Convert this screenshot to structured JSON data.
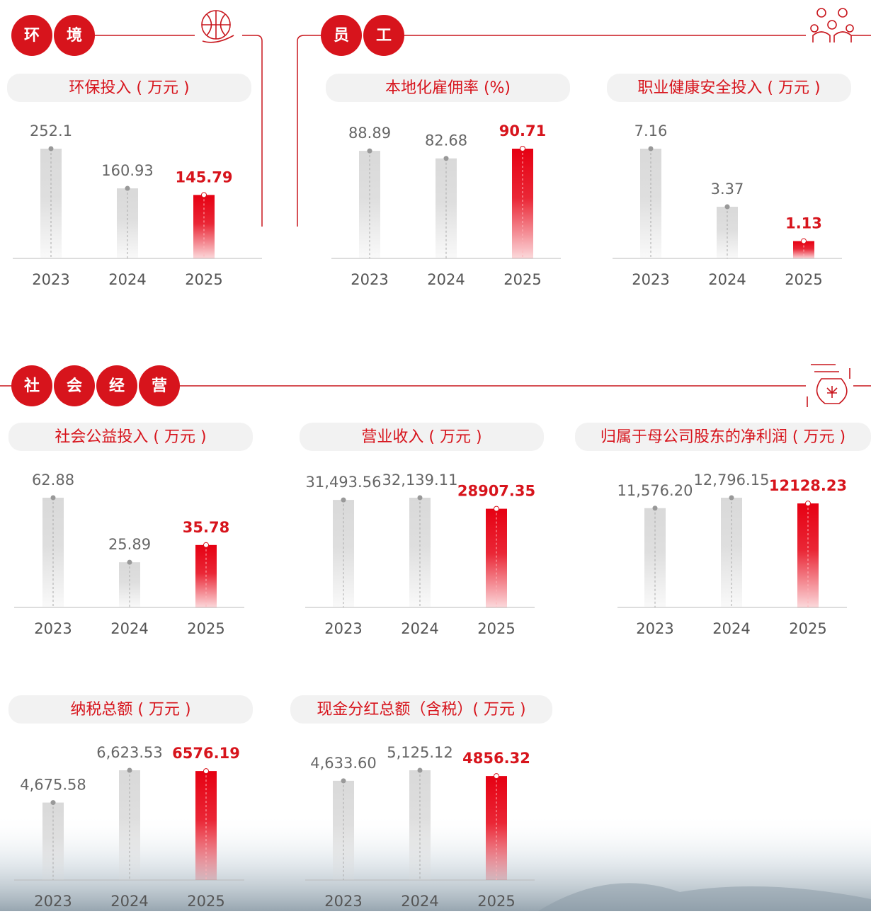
{
  "sections": [
    {
      "chars": [
        "环",
        "境"
      ]
    },
    {
      "chars": [
        "员",
        "工"
      ]
    },
    {
      "chars": [
        "社",
        "会",
        "经",
        "营"
      ]
    }
  ],
  "chart_data": [
    {
      "type": "bar",
      "title": "环保投入 ( 万元 )",
      "categories": [
        "2023",
        "2024",
        "2025"
      ],
      "values": [
        252.1,
        160.93,
        145.79
      ],
      "colors": [
        "#d9d9d9",
        "#d9d9d9",
        "#e60012"
      ]
    },
    {
      "type": "bar",
      "title": "本地化雇佣率 (%)",
      "categories": [
        "2023",
        "2024",
        "2025"
      ],
      "values": [
        88.89,
        82.68,
        90.71
      ],
      "colors": [
        "#d9d9d9",
        "#d9d9d9",
        "#e60012"
      ]
    },
    {
      "type": "bar",
      "title": "职业健康安全投入 ( 万元 )",
      "categories": [
        "2023",
        "2024",
        "2025"
      ],
      "values": [
        7.16,
        3.37,
        1.13
      ],
      "colors": [
        "#d9d9d9",
        "#d9d9d9",
        "#e60012"
      ]
    },
    {
      "type": "bar",
      "title": "社会公益投入 ( 万元 )",
      "categories": [
        "2023",
        "2024",
        "2025"
      ],
      "values": [
        62.88,
        25.89,
        35.78
      ],
      "colors": [
        "#d9d9d9",
        "#d9d9d9",
        "#e60012"
      ]
    },
    {
      "type": "bar",
      "title": "营业收入 ( 万元 )",
      "categories": [
        "2023",
        "2024",
        "2025"
      ],
      "values": [
        31493.56,
        32139.11,
        28907.35
      ],
      "value_labels": [
        "31,493.56",
        "32,139.11",
        "28907.35"
      ],
      "colors": [
        "#d9d9d9",
        "#d9d9d9",
        "#e60012"
      ]
    },
    {
      "type": "bar",
      "title": "归属于母公司股东的净利润 ( 万元 )",
      "categories": [
        "2023",
        "2024",
        "2025"
      ],
      "values": [
        11576.2,
        12796.15,
        12128.23
      ],
      "value_labels": [
        "11,576.20",
        "12,796.15",
        "12128.23"
      ],
      "colors": [
        "#d9d9d9",
        "#d9d9d9",
        "#e60012"
      ]
    },
    {
      "type": "bar",
      "title": "纳税总额 ( 万元 )",
      "categories": [
        "2023",
        "2024",
        "2025"
      ],
      "values": [
        4675.58,
        6623.53,
        6576.19
      ],
      "value_labels": [
        "4,675.58",
        "6,623.53",
        "6576.19"
      ],
      "colors": [
        "#d9d9d9",
        "#d9d9d9",
        "#e60012"
      ]
    },
    {
      "type": "bar",
      "title": "现金分红总额（含税）( 万元 )",
      "categories": [
        "2023",
        "2024",
        "2025"
      ],
      "values": [
        4633.6,
        5125.12,
        4856.32
      ],
      "value_labels": [
        "4,633.60",
        "5,125.12",
        "4856.32"
      ],
      "colors": [
        "#d9d9d9",
        "#d9d9d9",
        "#e60012"
      ]
    }
  ]
}
